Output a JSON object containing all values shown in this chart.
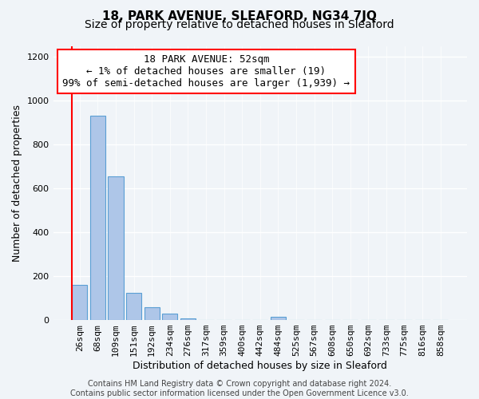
{
  "title": "18, PARK AVENUE, SLEAFORD, NG34 7JQ",
  "subtitle": "Size of property relative to detached houses in Sleaford",
  "xlabel": "Distribution of detached houses by size in Sleaford",
  "ylabel": "Number of detached properties",
  "bar_labels": [
    "26sqm",
    "68sqm",
    "109sqm",
    "151sqm",
    "192sqm",
    "234sqm",
    "276sqm",
    "317sqm",
    "359sqm",
    "400sqm",
    "442sqm",
    "484sqm",
    "525sqm",
    "567sqm",
    "608sqm",
    "650sqm",
    "692sqm",
    "733sqm",
    "775sqm",
    "816sqm",
    "858sqm"
  ],
  "bar_values": [
    160,
    930,
    655,
    125,
    58,
    28,
    8,
    0,
    0,
    0,
    0,
    15,
    0,
    0,
    0,
    0,
    0,
    0,
    0,
    0,
    0
  ],
  "bar_color": "#aec6e8",
  "bar_edge_color": "#5a9fd4",
  "ylim": [
    0,
    1250
  ],
  "yticks": [
    0,
    200,
    400,
    600,
    800,
    1000,
    1200
  ],
  "red_line_x": -0.42,
  "annotation_title": "18 PARK AVENUE: 52sqm",
  "annotation_line1": "← 1% of detached houses are smaller (19)",
  "annotation_line2": "99% of semi-detached houses are larger (1,939) →",
  "footer_line1": "Contains HM Land Registry data © Crown copyright and database right 2024.",
  "footer_line2": "Contains public sector information licensed under the Open Government Licence v3.0.",
  "bg_color": "#f0f4f8",
  "grid_color": "#ffffff",
  "title_fontsize": 11,
  "subtitle_fontsize": 10,
  "axis_label_fontsize": 9,
  "tick_fontsize": 8,
  "annotation_fontsize": 9,
  "footer_fontsize": 7
}
